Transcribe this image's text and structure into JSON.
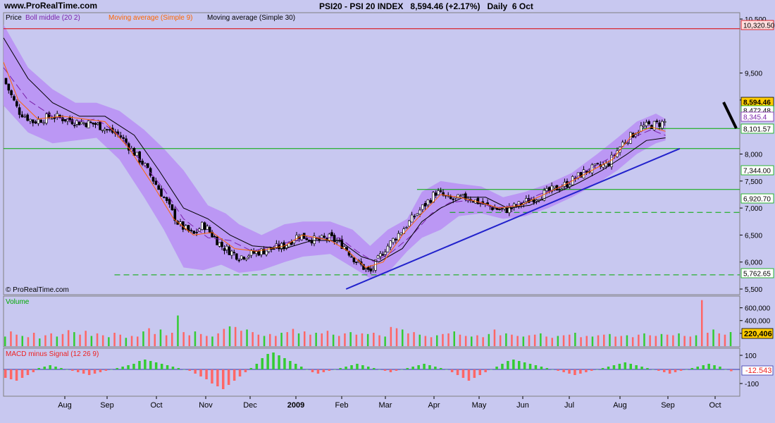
{
  "site": "www.ProRealTime.com",
  "header": {
    "symbol": "PSI20 - PSI 20 INDEX",
    "last": "8,594.46",
    "change": "(+2.17%)",
    "interval": "Daily",
    "date": "6 Oct"
  },
  "watermark": "© ProRealTime.com",
  "colors": {
    "background": "#c8c8f0",
    "boll_band": "#b98ef5",
    "sma9": "#ff6600",
    "sma30": "#000000",
    "trendline": "#2222cc",
    "support": "#00aa00",
    "resistance": "#dd0000",
    "vol_up": "#33cc33",
    "vol_down": "#ff6666",
    "price_tag": "#ffcc00"
  },
  "price_panel": {
    "legend": [
      {
        "text": "Price",
        "color": "#000000"
      },
      {
        "text": "Boll middle (20 2)",
        "color": "#7a22aa"
      },
      {
        "text": "Moving average (Simple 9)",
        "color": "#ff6600"
      },
      {
        "text": "Moving average (Simple 30)",
        "color": "#000000"
      }
    ],
    "y_ticks": [
      "10,500",
      "9,500",
      "9,000",
      "8,000",
      "7,500",
      "7,000",
      "6,500",
      "6,000",
      "5,500"
    ],
    "labels": [
      {
        "value": "10,320.50",
        "style": "red"
      },
      {
        "value": "8,594.46",
        "style": "yellow"
      },
      {
        "value": "8,472.48",
        "style": "plain"
      },
      {
        "value": "8,345.4",
        "style": "purple"
      },
      {
        "value": "8,101.57",
        "style": "plain"
      },
      {
        "value": "7,344.00",
        "style": "plain"
      },
      {
        "value": "6,920.70",
        "style": "plain"
      },
      {
        "value": "5,762.65",
        "style": "plain"
      }
    ]
  },
  "volume_panel": {
    "title": "Volume",
    "y_ticks": [
      "600,000",
      "400,000",
      "200,000"
    ],
    "last_value": "220,406"
  },
  "macd_panel": {
    "title": "MACD minus Signal (12 26 9)",
    "y_ticks": [
      "100",
      "-100"
    ],
    "last_value": "-12.543"
  },
  "x_axis": {
    "labels": [
      "Aug",
      "Sep",
      "Oct",
      "Nov",
      "Dec",
      "2009",
      "Feb",
      "Mar",
      "Apr",
      "May",
      "Jun",
      "Jul",
      "Aug",
      "Sep",
      "Oct"
    ]
  },
  "chart_data": {
    "type": "candlestick",
    "title": "PSI20 - PSI 20 INDEX",
    "x_labels": [
      "Aug",
      "Sep",
      "Oct",
      "Nov",
      "Dec",
      "2009",
      "Feb",
      "Mar",
      "Apr",
      "May",
      "Jun",
      "Jul",
      "Aug",
      "Sep",
      "Oct"
    ],
    "ylim": [
      5400,
      10600
    ],
    "close_path": [
      [
        0,
        9400
      ],
      [
        0.3,
        8800
      ],
      [
        0.6,
        8600
      ],
      [
        1,
        8700
      ],
      [
        1.5,
        8600
      ],
      [
        2,
        8550
      ],
      [
        2.5,
        8350
      ],
      [
        3,
        7800
      ],
      [
        3.4,
        7200
      ],
      [
        3.7,
        6700
      ],
      [
        4,
        6500
      ],
      [
        4.2,
        6700
      ],
      [
        4.6,
        6300
      ],
      [
        5,
        6100
      ],
      [
        5.5,
        6200
      ],
      [
        6,
        6300
      ],
      [
        6.3,
        6500
      ],
      [
        6.7,
        6400
      ],
      [
        7,
        6450
      ],
      [
        7.3,
        6300
      ],
      [
        7.6,
        6000
      ],
      [
        7.9,
        5800
      ],
      [
        8.2,
        6200
      ],
      [
        8.6,
        6600
      ],
      [
        9,
        7000
      ],
      [
        9.3,
        7300
      ],
      [
        9.6,
        7150
      ],
      [
        10,
        7200
      ],
      [
        10.4,
        7050
      ],
      [
        10.8,
        6950
      ],
      [
        11,
        7000
      ],
      [
        11.4,
        7150
      ],
      [
        11.8,
        7300
      ],
      [
        12.2,
        7450
      ],
      [
        12.6,
        7700
      ],
      [
        13,
        7800
      ],
      [
        13.3,
        8200
      ],
      [
        13.7,
        8500
      ],
      [
        14,
        8550
      ],
      [
        14.2,
        8594
      ]
    ],
    "boll_upper_path": [
      [
        0,
        10400
      ],
      [
        0.5,
        9600
      ],
      [
        1,
        9200
      ],
      [
        1.5,
        8950
      ],
      [
        2,
        8950
      ],
      [
        2.5,
        8800
      ],
      [
        3,
        8450
      ],
      [
        3.4,
        8100
      ],
      [
        3.8,
        7700
      ],
      [
        4.3,
        7050
      ],
      [
        4.7,
        6900
      ],
      [
        5,
        6700
      ],
      [
        5.5,
        6500
      ],
      [
        6,
        6700
      ],
      [
        6.4,
        6750
      ],
      [
        7,
        6750
      ],
      [
        7.5,
        6600
      ],
      [
        7.9,
        6300
      ],
      [
        8.3,
        6600
      ],
      [
        8.7,
        6800
      ],
      [
        9,
        7300
      ],
      [
        9.4,
        7500
      ],
      [
        9.8,
        7450
      ],
      [
        10.3,
        7400
      ],
      [
        10.8,
        7200
      ],
      [
        11.3,
        7300
      ],
      [
        11.8,
        7450
      ],
      [
        12.3,
        7650
      ],
      [
        12.8,
        8000
      ],
      [
        13.2,
        8300
      ],
      [
        13.6,
        8600
      ],
      [
        14,
        8750
      ],
      [
        14.2,
        8650
      ]
    ],
    "boll_lower_path": [
      [
        0,
        8900
      ],
      [
        0.5,
        8400
      ],
      [
        1,
        8200
      ],
      [
        1.5,
        8250
      ],
      [
        2,
        8300
      ],
      [
        2.5,
        7900
      ],
      [
        3,
        7200
      ],
      [
        3.4,
        6600
      ],
      [
        3.8,
        5900
      ],
      [
        4.2,
        5850
      ],
      [
        4.6,
        5950
      ],
      [
        5,
        5800
      ],
      [
        5.5,
        5850
      ],
      [
        6,
        6000
      ],
      [
        6.4,
        6100
      ],
      [
        7,
        6150
      ],
      [
        7.5,
        5900
      ],
      [
        7.9,
        5700
      ],
      [
        8.3,
        5800
      ],
      [
        8.7,
        6200
      ],
      [
        9,
        6450
      ],
      [
        9.4,
        6600
      ],
      [
        9.8,
        6850
      ],
      [
        10.3,
        6900
      ],
      [
        10.8,
        6800
      ],
      [
        11.3,
        6850
      ],
      [
        11.8,
        7000
      ],
      [
        12.3,
        7200
      ],
      [
        12.8,
        7450
      ],
      [
        13.2,
        7700
      ],
      [
        13.6,
        8000
      ],
      [
        14,
        8200
      ],
      [
        14.2,
        8250
      ]
    ],
    "sma30_path": [
      [
        0,
        10150
      ],
      [
        0.5,
        9400
      ],
      [
        1,
        8950
      ],
      [
        1.6,
        8700
      ],
      [
        2.2,
        8700
      ],
      [
        2.8,
        8350
      ],
      [
        3.3,
        7700
      ],
      [
        3.8,
        7000
      ],
      [
        4.3,
        6800
      ],
      [
        4.8,
        6500
      ],
      [
        5.3,
        6300
      ],
      [
        6,
        6250
      ],
      [
        6.6,
        6400
      ],
      [
        7.2,
        6400
      ],
      [
        7.7,
        6100
      ],
      [
        8.1,
        6000
      ],
      [
        8.6,
        6250
      ],
      [
        9,
        6750
      ],
      [
        9.4,
        7000
      ],
      [
        9.9,
        7200
      ],
      [
        10.4,
        7200
      ],
      [
        10.9,
        7000
      ],
      [
        11.4,
        7050
      ],
      [
        11.9,
        7250
      ],
      [
        12.4,
        7450
      ],
      [
        12.9,
        7700
      ],
      [
        13.4,
        8000
      ],
      [
        13.8,
        8250
      ],
      [
        14.2,
        8300
      ]
    ],
    "sma9_path": [
      [
        0,
        9700
      ],
      [
        0.3,
        9000
      ],
      [
        0.7,
        8650
      ],
      [
        1.2,
        8700
      ],
      [
        1.7,
        8650
      ],
      [
        2.2,
        8600
      ],
      [
        2.7,
        8100
      ],
      [
        3.2,
        7400
      ],
      [
        3.6,
        6800
      ],
      [
        4,
        6500
      ],
      [
        4.4,
        6550
      ],
      [
        4.9,
        6250
      ],
      [
        5.4,
        6200
      ],
      [
        6,
        6300
      ],
      [
        6.4,
        6500
      ],
      [
        7,
        6400
      ],
      [
        7.4,
        6200
      ],
      [
        7.8,
        5900
      ],
      [
        8.2,
        6000
      ],
      [
        8.6,
        6500
      ],
      [
        9,
        6900
      ],
      [
        9.4,
        7250
      ],
      [
        9.8,
        7200
      ],
      [
        10.3,
        7100
      ],
      [
        10.7,
        7000
      ],
      [
        11.2,
        7050
      ],
      [
        11.7,
        7250
      ],
      [
        12.2,
        7450
      ],
      [
        12.7,
        7700
      ],
      [
        13.1,
        7900
      ],
      [
        13.5,
        8350
      ],
      [
        13.9,
        8500
      ],
      [
        14.2,
        8420
      ]
    ],
    "boll_middle_path": [
      [
        0,
        9600
      ],
      [
        0.5,
        9000
      ],
      [
        1,
        8700
      ],
      [
        1.5,
        8600
      ],
      [
        2,
        8650
      ],
      [
        2.5,
        8350
      ],
      [
        3,
        7800
      ],
      [
        3.4,
        7350
      ],
      [
        3.8,
        6800
      ],
      [
        4.3,
        6450
      ],
      [
        4.8,
        6400
      ],
      [
        5.3,
        6200
      ],
      [
        6,
        6350
      ],
      [
        6.5,
        6450
      ],
      [
        7.2,
        6450
      ],
      [
        7.6,
        6200
      ],
      [
        8,
        6000
      ],
      [
        8.4,
        6200
      ],
      [
        8.8,
        6500
      ],
      [
        9.2,
        6900
      ],
      [
        9.6,
        7100
      ],
      [
        10.1,
        7150
      ],
      [
        10.6,
        7000
      ],
      [
        11.1,
        7050
      ],
      [
        11.6,
        7250
      ],
      [
        12.1,
        7400
      ],
      [
        12.6,
        7700
      ],
      [
        13.1,
        7950
      ],
      [
        13.5,
        8300
      ],
      [
        13.9,
        8450
      ],
      [
        14.2,
        8345
      ]
    ],
    "trendline": [
      [
        7.35,
        5500
      ],
      [
        14.5,
        8100
      ]
    ],
    "horizontal_levels": [
      {
        "value": 10320.5,
        "style": "resistance",
        "from": 0,
        "to": 15
      },
      {
        "value": 8101.57,
        "style": "support",
        "from": 0,
        "to": 15
      },
      {
        "value": 7344.0,
        "style": "support",
        "from": 8.9,
        "to": 15
      },
      {
        "value": 6920.7,
        "style": "support-dashed",
        "from": 9.6,
        "to": 15
      },
      {
        "value": 5762.65,
        "style": "support-dashed",
        "from": 2.4,
        "to": 15
      },
      {
        "value": 8472.48,
        "style": "support",
        "from": 13.7,
        "to": 15
      }
    ],
    "volume": {
      "ylim": [
        0,
        750000
      ],
      "values": [
        150000,
        230000,
        180000,
        160000,
        140000,
        210000,
        120000,
        170000,
        200000,
        150000,
        190000,
        250000,
        220000,
        180000,
        240000,
        160000,
        200000,
        170000,
        140000,
        210000,
        180000,
        130000,
        160000,
        150000,
        230000,
        280000,
        190000,
        260000,
        170000,
        210000,
        480000,
        220000,
        170000,
        230000,
        190000,
        160000,
        150000,
        200000,
        270000,
        310000,
        300000,
        240000,
        260000,
        220000,
        180000,
        160000,
        190000,
        160000,
        210000,
        220000,
        270000,
        200000,
        230000,
        180000,
        210000,
        200000,
        240000,
        180000,
        160000,
        200000,
        220000,
        180000,
        200000,
        190000,
        210000,
        170000,
        150000,
        300000,
        280000,
        260000,
        200000,
        220000,
        180000,
        160000,
        140000,
        170000,
        190000,
        200000,
        230000,
        180000,
        160000,
        150000,
        170000,
        140000,
        190000,
        260000,
        170000,
        200000,
        180000,
        160000,
        150000,
        170000,
        180000,
        200000,
        150000,
        130000,
        160000,
        170000,
        180000,
        210000,
        140000,
        160000,
        150000,
        170000,
        180000,
        190000,
        150000,
        160000,
        170000,
        140000,
        180000,
        200000,
        170000,
        160000,
        190000,
        180000,
        170000,
        200000,
        160000,
        150000,
        170000,
        720000,
        210000,
        260000,
        200000,
        180000,
        220406
      ]
    },
    "macd": {
      "ylim": [
        -150,
        130
      ],
      "values": [
        -60,
        -70,
        -80,
        -60,
        -40,
        -20,
        10,
        20,
        30,
        20,
        10,
        0,
        -10,
        -20,
        -30,
        -40,
        -30,
        -20,
        -10,
        0,
        10,
        20,
        30,
        40,
        60,
        70,
        60,
        50,
        40,
        30,
        20,
        10,
        0,
        -10,
        -30,
        -50,
        -70,
        -100,
        -120,
        -140,
        -110,
        -80,
        -50,
        -20,
        10,
        40,
        80,
        110,
        120,
        100,
        80,
        60,
        40,
        20,
        0,
        -20,
        -30,
        -20,
        -10,
        0,
        10,
        20,
        30,
        40,
        30,
        20,
        10,
        0,
        -10,
        -20,
        -10,
        0,
        10,
        20,
        30,
        40,
        30,
        20,
        10,
        0,
        -20,
        -40,
        -60,
        -80,
        -60,
        -40,
        -20,
        0,
        20,
        40,
        60,
        70,
        60,
        50,
        40,
        30,
        20,
        10,
        0,
        -10,
        -20,
        -30,
        -40,
        -30,
        -20,
        -10,
        0,
        10,
        20,
        30,
        40,
        50,
        40,
        30,
        20,
        10,
        0,
        -10,
        -20,
        -30,
        -20,
        -10,
        0,
        10,
        20,
        30,
        40,
        30,
        20,
        0,
        -12.5
      ]
    }
  }
}
